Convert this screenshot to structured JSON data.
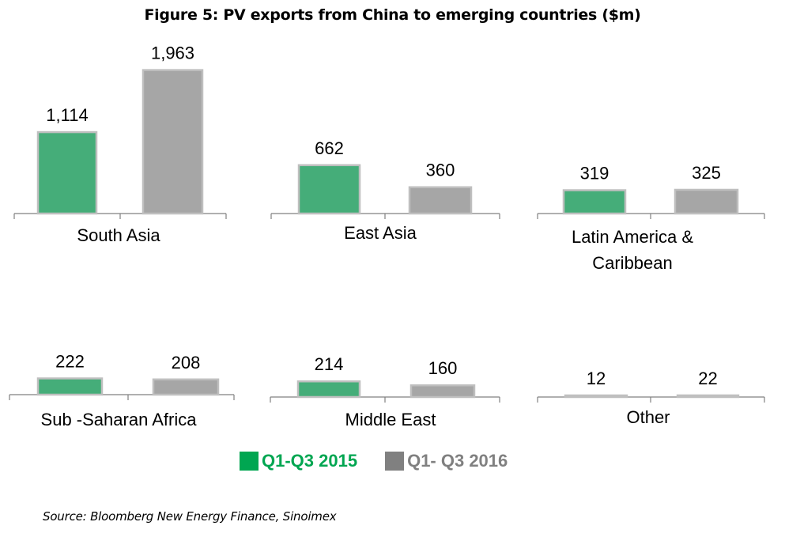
{
  "title": "Figure 5: PV exports from China to emerging countries ($m)",
  "source": "Source: Bloomberg New Energy Finance, Sinoimex",
  "colors": {
    "q1q3_2015": "#45ad79",
    "q1q3_2015_legend": "#00a651",
    "q1q3_2016": "#a6a6a6",
    "q1q3_2016_legend": "#808080",
    "bar_border": "#bfbfbf",
    "axis": "#808080"
  },
  "legend": {
    "items": [
      {
        "label": "Q1-Q3 2015",
        "color": "#00a651",
        "text_color": "#00a651"
      },
      {
        "label": "Q1- Q3 2016",
        "color": "#808080",
        "text_color": "#808080"
      }
    ]
  },
  "chart_data": {
    "type": "bar",
    "title": "Figure 5: PV exports from China to emerging countries ($m)",
    "xlabel": "",
    "ylabel": "",
    "grid": false,
    "legend_position": "bottom",
    "series_names": [
      "Q1-Q3 2015",
      "Q1- Q3 2016"
    ],
    "panels": [
      {
        "category": "South Asia",
        "label_lines": [
          "South Asia"
        ],
        "values": [
          1114,
          1963
        ],
        "value_labels": [
          "1,114",
          "1,963"
        ]
      },
      {
        "category": "East Asia",
        "label_lines": [
          "East Asia"
        ],
        "values": [
          662,
          360
        ],
        "value_labels": [
          "662",
          "360"
        ]
      },
      {
        "category": "Latin America & Caribbean",
        "label_lines": [
          "Latin America &",
          "Caribbean"
        ],
        "values": [
          319,
          325
        ],
        "value_labels": [
          "319",
          "325"
        ]
      },
      {
        "category": "Sub -Saharan Africa",
        "label_lines": [
          "Sub -Saharan Africa"
        ],
        "values": [
          222,
          208
        ],
        "value_labels": [
          "222",
          "208"
        ]
      },
      {
        "category": "Middle East",
        "label_lines": [
          "Middle East"
        ],
        "values": [
          214,
          160
        ],
        "value_labels": [
          "214",
          "160"
        ]
      },
      {
        "category": "Other",
        "label_lines": [
          "Other"
        ],
        "values": [
          12,
          22
        ],
        "value_labels": [
          "12",
          "22"
        ]
      }
    ]
  }
}
